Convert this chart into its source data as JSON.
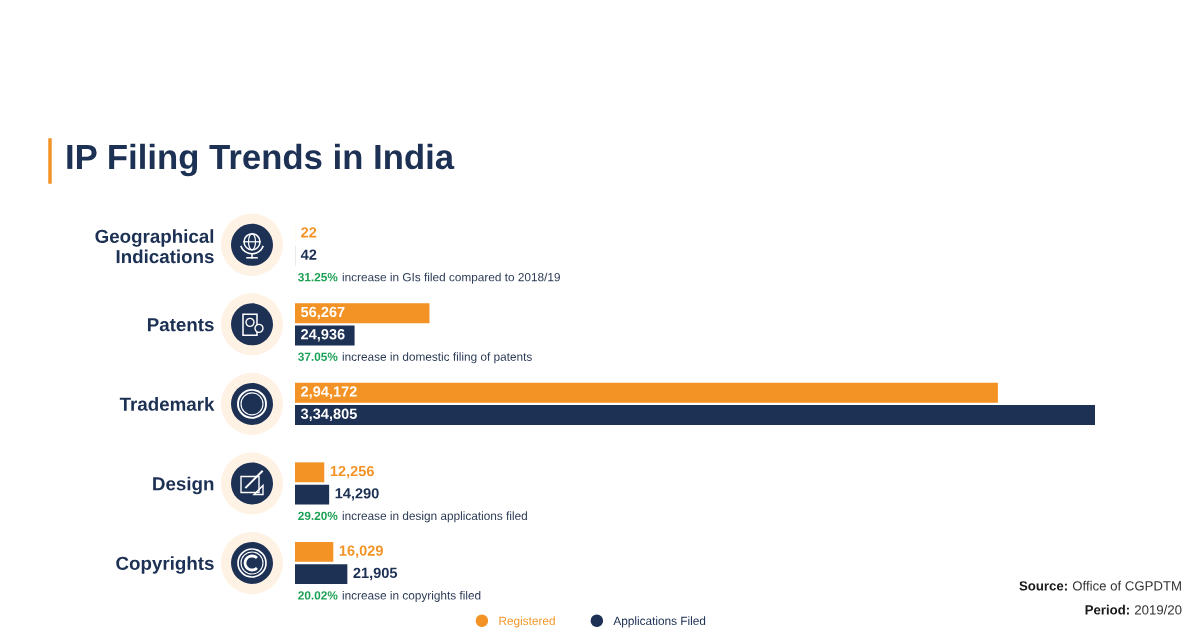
{
  "chart_data": {
    "type": "bar",
    "orientation": "horizontal",
    "title": "IP Filing Trends in India",
    "categories": [
      "Geographical Indications",
      "Patents",
      "Trademark",
      "Design",
      "Copyrights"
    ],
    "series": [
      {
        "name": "Registered",
        "color": "#f39325",
        "values": [
          22,
          56267,
          294172,
          12256,
          16029
        ],
        "value_labels": [
          "22",
          "56,267",
          "2,94,172",
          "12,256",
          "16,029"
        ]
      },
      {
        "name": "Applications Filed",
        "color": "#1d3154",
        "values": [
          42,
          24936,
          334805,
          14290,
          21905
        ],
        "value_labels": [
          "42",
          "24,936",
          "3,34,805",
          "14,290",
          "21,905"
        ]
      }
    ],
    "annotations": [
      "31.25% increase in GIs filed compared to 2018/19",
      "37.05% increase in domestic filing of patents",
      "29.20% increase in design applications filed",
      "20.02% increase in copyrights filed",
      "Source: Office of CGPDTM",
      "Period: 2019/20"
    ],
    "legend": "bottom",
    "tick_labels": "y"
  }
}
